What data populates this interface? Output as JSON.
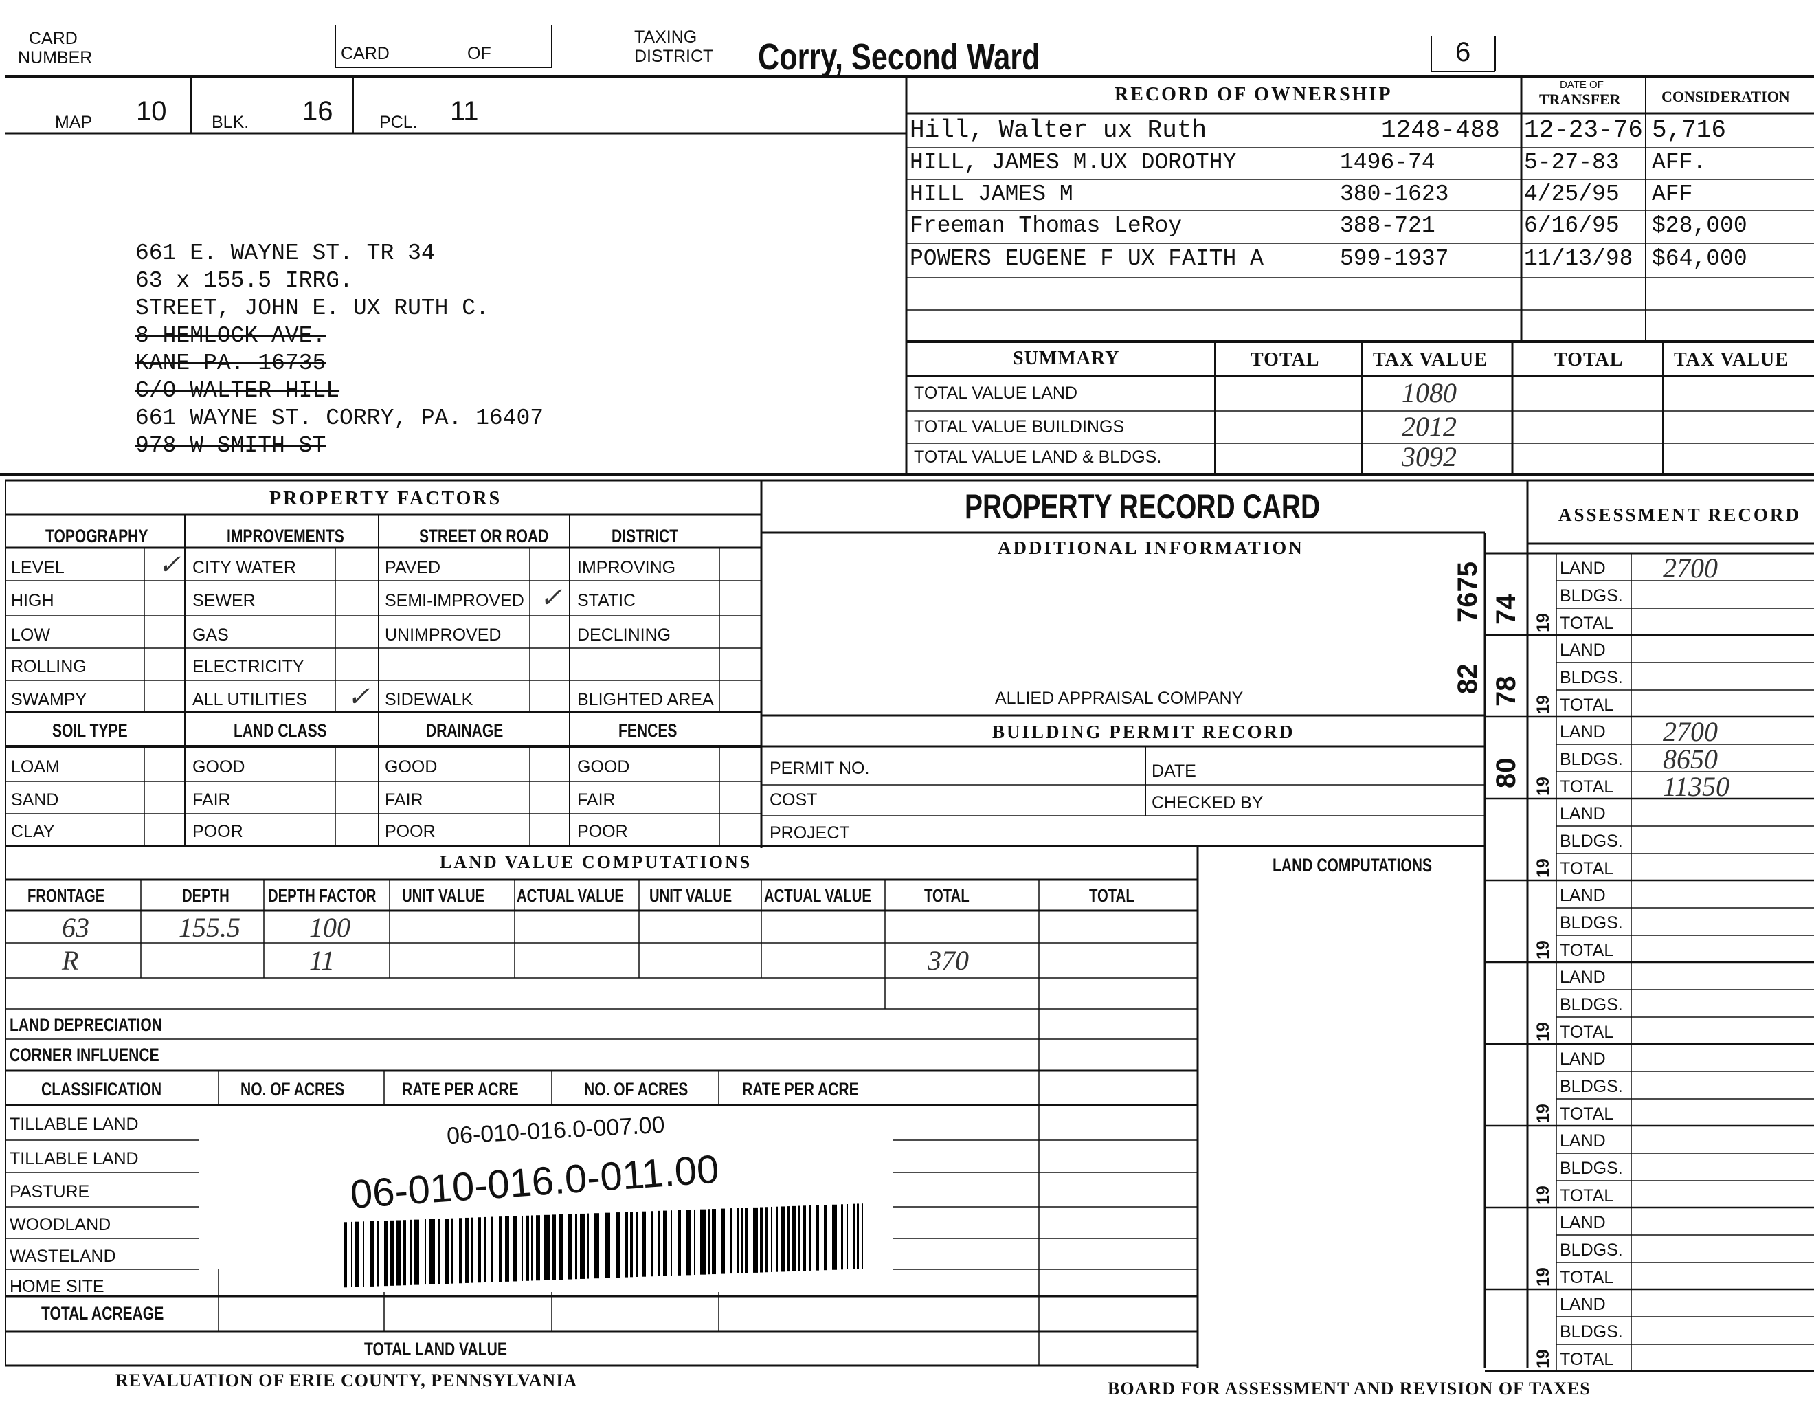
{
  "header": {
    "card_number_label": [
      "CARD",
      "NUMBER"
    ],
    "card_of": {
      "card": "CARD",
      "of": "OF"
    },
    "taxing_district_label": [
      "TAXING",
      "DISTRICT"
    ],
    "taxing_district": "Corry, Second Ward",
    "district_code": "6",
    "map_label": "MAP",
    "map": "10",
    "blk_label": "BLK.",
    "blk": "16",
    "pcl_label": "PCL.",
    "pcl": "11"
  },
  "address": {
    "lines": [
      {
        "text": "661 E. WAYNE ST. TR 34",
        "struck": false
      },
      {
        "text": "63 x 155.5 IRRG.",
        "struck": false
      },
      {
        "text": "STREET, JOHN E. UX RUTH C.",
        "struck": false
      },
      {
        "text": "8 HEMLOCK AVE.",
        "struck": true
      },
      {
        "text": "KANE PA. 16735",
        "struck": true
      },
      {
        "text": "C/O WALTER HILL",
        "struck": true
      },
      {
        "text": "661 WAYNE ST. CORRY, PA. 16407",
        "struck": false
      },
      {
        "text": "978 W SMITH ST",
        "struck": true
      }
    ]
  },
  "ownership": {
    "title": "RECORD OF OWNERSHIP",
    "date_header": [
      "DATE OF",
      "TRANSFER"
    ],
    "consideration_header": "CONSIDERATION",
    "rows": [
      {
        "name": "Hill, Walter ux Ruth",
        "deed": "1248-488",
        "date": "12-23-76",
        "consideration": "5,716"
      },
      {
        "name": "HILL, JAMES M.UX DOROTHY",
        "deed": "1496-74",
        "date": "5-27-83",
        "consideration": "AFF."
      },
      {
        "name": "HILL JAMES M",
        "deed": "380-1623",
        "date": "4/25/95",
        "consideration": "AFF"
      },
      {
        "name": "Freeman Thomas LeRoy",
        "deed": "388-721",
        "date": "6/16/95",
        "consideration": "$28,000"
      },
      {
        "name": "POWERS EUGENE F UX FAITH A",
        "deed": "599-1937",
        "date": "11/13/98",
        "consideration": "$64,000"
      }
    ]
  },
  "summary": {
    "title": "SUMMARY",
    "headers": [
      "TOTAL",
      "TAX VALUE",
      "TOTAL",
      "TAX VALUE"
    ],
    "rows": [
      {
        "label": "TOTAL VALUE LAND",
        "tax_value": "1080"
      },
      {
        "label": "TOTAL VALUE BUILDINGS",
        "tax_value": "2012"
      },
      {
        "label": "TOTAL VALUE LAND & BLDGS.",
        "tax_value": "3092"
      }
    ]
  },
  "property_factors": {
    "title": "PROPERTY FACTORS",
    "groups": [
      {
        "header": "TOPOGRAPHY",
        "items": [
          "LEVEL",
          "HIGH",
          "LOW",
          "ROLLING",
          "SWAMPY"
        ],
        "checked": [
          true,
          false,
          false,
          false,
          false
        ]
      },
      {
        "header": "IMPROVEMENTS",
        "items": [
          "CITY WATER",
          "SEWER",
          "GAS",
          "ELECTRICITY",
          "ALL UTILITIES"
        ],
        "checked": [
          false,
          false,
          false,
          false,
          true
        ]
      },
      {
        "header": "STREET OR ROAD",
        "items": [
          "PAVED",
          "SEMI-IMPROVED",
          "UNIMPROVED",
          "",
          "SIDEWALK"
        ],
        "checked": [
          false,
          true,
          false,
          false,
          false
        ]
      },
      {
        "header": "DISTRICT",
        "items": [
          "IMPROVING",
          "STATIC",
          "DECLINING",
          "",
          "BLIGHTED AREA"
        ],
        "checked": [
          false,
          false,
          false,
          false,
          false
        ]
      }
    ],
    "groups2": [
      {
        "header": "SOIL TYPE",
        "items": [
          "LOAM",
          "SAND",
          "CLAY"
        ]
      },
      {
        "header": "LAND CLASS",
        "items": [
          "GOOD",
          "FAIR",
          "POOR"
        ]
      },
      {
        "header": "DRAINAGE",
        "items": [
          "GOOD",
          "FAIR",
          "POOR"
        ]
      },
      {
        "header": "FENCES",
        "items": [
          "GOOD",
          "FAIR",
          "POOR"
        ]
      }
    ]
  },
  "record_card": {
    "title": "PROPERTY RECORD CARD",
    "additional_info": "ADDITIONAL INFORMATION",
    "appraiser": "ALLIED APPRAISAL COMPANY",
    "building_permit": "BUILDING PERMIT RECORD",
    "permit_no": "PERMIT NO.",
    "date": "DATE",
    "cost": "COST",
    "checked_by": "CHECKED BY",
    "project": "PROJECT",
    "land_computations": "LAND COMPUTATIONS"
  },
  "land_value": {
    "title": "LAND VALUE COMPUTATIONS",
    "headers": [
      "FRONTAGE",
      "DEPTH",
      "DEPTH FACTOR",
      "UNIT VALUE",
      "ACTUAL VALUE",
      "UNIT VALUE",
      "ACTUAL VALUE",
      "TOTAL",
      "TOTAL"
    ],
    "rows": [
      {
        "frontage": "63",
        "depth": "155.5",
        "depth_factor": "100",
        "total": ""
      },
      {
        "frontage": "R",
        "depth": "",
        "depth_factor": "11",
        "total": "370"
      }
    ],
    "land_depreciation": "LAND DEPRECIATION",
    "corner_influence": "CORNER INFLUENCE",
    "class_headers": [
      "CLASSIFICATION",
      "NO. OF ACRES",
      "RATE PER ACRE",
      "NO. OF ACRES",
      "RATE PER ACRE"
    ],
    "classes": [
      "TILLABLE LAND",
      "TILLABLE LAND",
      "PASTURE",
      "WOODLAND",
      "WASTELAND",
      "HOME SITE"
    ],
    "total_acreage": "TOTAL ACREAGE",
    "total_land_value": "TOTAL LAND VALUE"
  },
  "barcode": {
    "printed_id": "06-010-016.0-007.00",
    "handwritten_id": "06-010-016.0-011.00"
  },
  "assessment": {
    "title": "ASSESSMENT RECORD",
    "year_prefix": "19",
    "labels": [
      "LAND",
      "BLDGS.",
      "TOTAL"
    ],
    "blocks": [
      {
        "stamp": "74",
        "land": "2700",
        "bldgs": "",
        "total": ""
      },
      {
        "stamp": "78",
        "land": "",
        "bldgs": "",
        "total": ""
      },
      {
        "stamp": "80",
        "land": "2700",
        "bldgs": "8650",
        "total": "11350"
      },
      {
        "stamp": "",
        "land": "",
        "bldgs": "",
        "total": ""
      },
      {
        "stamp": "",
        "land": "",
        "bldgs": "",
        "total": ""
      },
      {
        "stamp": "",
        "land": "",
        "bldgs": "",
        "total": ""
      },
      {
        "stamp": "",
        "land": "",
        "bldgs": "",
        "total": ""
      },
      {
        "stamp": "",
        "land": "",
        "bldgs": "",
        "total": ""
      },
      {
        "stamp": "",
        "land": "",
        "bldgs": "",
        "total": ""
      },
      {
        "stamp": "",
        "land": "",
        "bldgs": "",
        "total": ""
      }
    ],
    "side_stamp": "7675",
    "side_stamp2": "82"
  },
  "footer": {
    "left": "REVALUATION OF ERIE COUNTY, PENNSYLVANIA",
    "right": "BOARD FOR ASSESSMENT AND REVISION OF TAXES"
  }
}
